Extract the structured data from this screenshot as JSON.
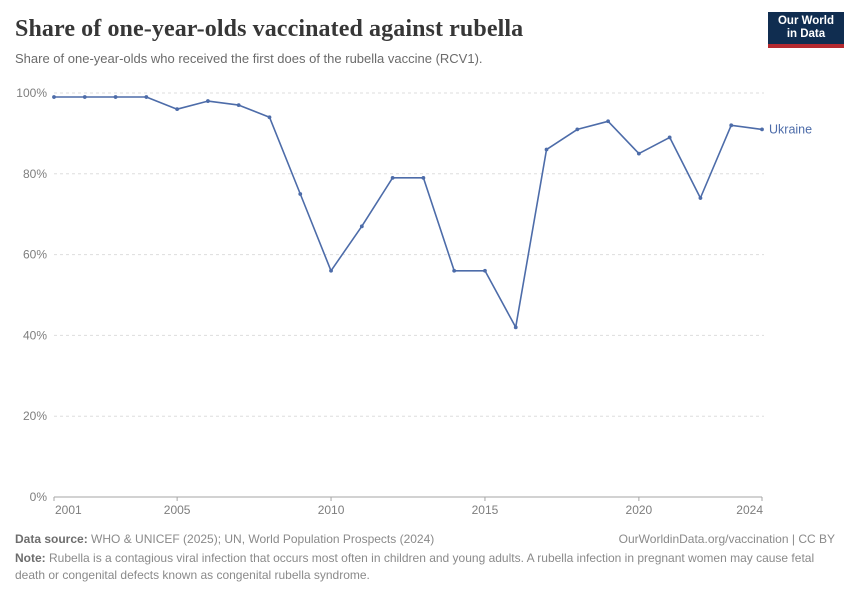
{
  "header": {
    "title": "Share of one-year-olds vaccinated against rubella",
    "subtitle": "Share of one-year-olds who received the first does of the rubella vaccine (RCV1).",
    "logo": {
      "line1": "Our World",
      "line2": "in Data",
      "bg_color": "#102d50",
      "accent_color": "#b5292f"
    }
  },
  "chart_data": {
    "type": "line",
    "title": "Share of one-year-olds vaccinated against rubella",
    "x": [
      2001,
      2002,
      2003,
      2004,
      2005,
      2006,
      2007,
      2008,
      2009,
      2010,
      2011,
      2012,
      2013,
      2014,
      2015,
      2016,
      2017,
      2018,
      2019,
      2020,
      2021,
      2022,
      2023,
      2024
    ],
    "series": [
      {
        "name": "Ukraine",
        "color": "#4d6ca9",
        "values": [
          99,
          99,
          99,
          99,
          96,
          98,
          97,
          94,
          75,
          56,
          67,
          79,
          79,
          56,
          56,
          42,
          86,
          91,
          93,
          85,
          89,
          74,
          92,
          91
        ]
      }
    ],
    "x_ticks": [
      2001,
      2005,
      2010,
      2015,
      2020,
      2024
    ],
    "y_ticks": [
      0,
      20,
      40,
      60,
      80,
      100
    ],
    "y_tick_suffix": "%",
    "xlim": [
      2001,
      2024
    ],
    "ylim": [
      0,
      100
    ],
    "grid": "horizontal-dashed",
    "legend": "line-end-label",
    "grid_color": "#dddddd",
    "axis_color": "#a6a6a6",
    "tick_label_color": "#7e7e7e"
  },
  "footer": {
    "data_source_label": "Data source:",
    "data_source_text": " WHO & UNICEF (2025); UN, World Population Prospects (2024)",
    "citation": "OurWorldinData.org/vaccination | CC BY",
    "note_label": "Note:",
    "note_text": " Rubella is a contagious viral infection that occurs most often in children and young adults. A rubella infection in pregnant women may cause fetal death or congenital defects known as congenital rubella syndrome."
  }
}
